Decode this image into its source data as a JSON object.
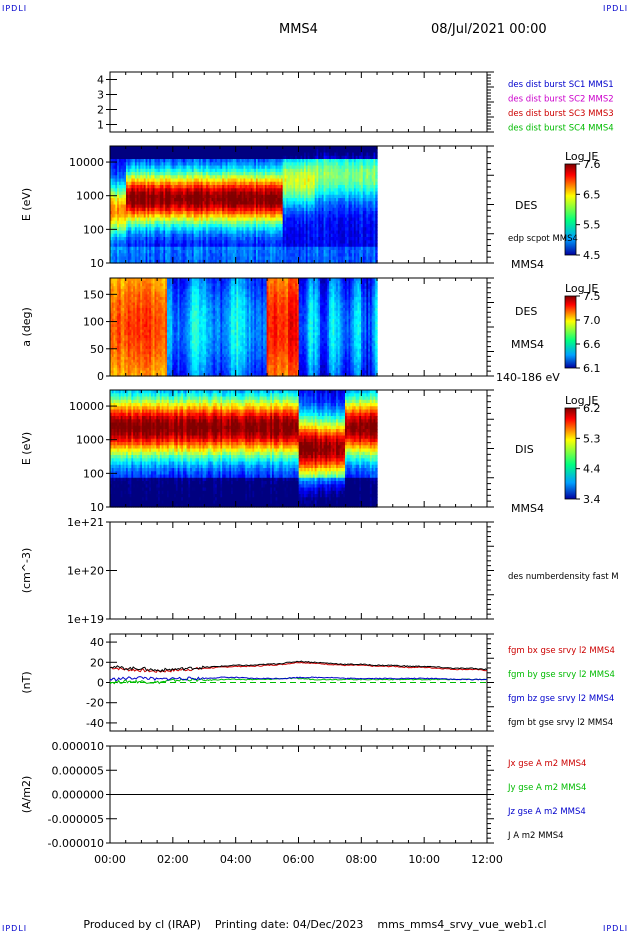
{
  "header": {
    "mission": "MMS4",
    "date": "08/Jul/2021 00:00"
  },
  "corners": {
    "tl": "IPDLI",
    "tr": "IPDLI",
    "bl": "IPDLI",
    "br": "IPDLI"
  },
  "footer": {
    "produced": "Produced by cl (IRAP)",
    "printing": "Printing date: 04/Dec/2023",
    "file": "mms_mms4_srvy_vue_web1.cl"
  },
  "colors": {
    "mms1": "#0000cc",
    "mms2": "#cc00cc",
    "mms3": "#cc0000",
    "mms4": "#00bb00",
    "black": "#000000"
  },
  "chart_data": [
    {
      "type": "line",
      "panel": "spacecraft",
      "ylim": [
        0.5,
        4.5
      ],
      "yticks": [
        "1",
        "2",
        "3",
        "4"
      ],
      "legend": [
        {
          "label": "des dist burst SC1 MMS1",
          "color": "#0000cc"
        },
        {
          "label": "des dist burst SC2 MMS2",
          "color": "#cc00cc"
        },
        {
          "label": "des dist burst SC3 MMS3",
          "color": "#cc0000"
        },
        {
          "label": "des dist burst SC4 MMS4",
          "color": "#00bb00"
        }
      ]
    },
    {
      "type": "heatmap",
      "panel": "des-energy",
      "ylabel": "E (eV)",
      "yscale": "log",
      "ylim": [
        10,
        30000
      ],
      "yticks": [
        "10",
        "100",
        "1000",
        "10000"
      ],
      "data_end_hour": 8.5,
      "colorbar": {
        "title": "Log JE",
        "ticks": [
          "7.6",
          "6.5",
          "5.5",
          "4.5"
        ]
      },
      "right_labels": [
        "DES",
        "edp scpot MMS4",
        "MMS4"
      ]
    },
    {
      "type": "heatmap",
      "panel": "des-pitch",
      "ylabel": "a (deg)",
      "ylim": [
        0,
        180
      ],
      "yticks": [
        "0",
        "50",
        "100",
        "150"
      ],
      "data_end_hour": 8.5,
      "colorbar": {
        "title": "Log JE",
        "ticks": [
          "7.5",
          "7.0",
          "6.6",
          "6.1"
        ]
      },
      "right_labels": [
        "DES",
        "MMS4",
        "140-186 eV"
      ]
    },
    {
      "type": "heatmap",
      "panel": "dis-energy",
      "ylabel": "E (eV)",
      "yscale": "log",
      "ylim": [
        10,
        30000
      ],
      "yticks": [
        "10",
        "100",
        "1000",
        "10000"
      ],
      "data_end_hour": 8.5,
      "colorbar": {
        "title": "Log JE",
        "ticks": [
          "6.2",
          "5.3",
          "4.4",
          "3.4"
        ]
      },
      "right_labels": [
        "DIS",
        "MMS4"
      ]
    },
    {
      "type": "line",
      "panel": "density",
      "ylabel": "(cm^-3)",
      "yscale": "log",
      "yticks": [
        "1e+19",
        "1e+20",
        "1e+21"
      ],
      "legend": [
        {
          "label": "des numberdensity fast M",
          "color": "#000000"
        }
      ]
    },
    {
      "type": "line",
      "panel": "magnetic-field",
      "ylabel": "(nT)",
      "ylim": [
        -48,
        48
      ],
      "yticks": [
        "-40",
        "-20",
        "0",
        "20",
        "40"
      ],
      "x": [
        0,
        0.5,
        1,
        1.5,
        2,
        2.5,
        3,
        3.5,
        4,
        4.5,
        5,
        5.5,
        6,
        6.5,
        7,
        7.5,
        8,
        8.5,
        9,
        9.5,
        10,
        10.5,
        11,
        11.5,
        12
      ],
      "series": [
        {
          "name": "fgm bx gse srvy l2 MMS4",
          "color": "#cc0000",
          "values": [
            15,
            13,
            12,
            11,
            12,
            13,
            14,
            15,
            16,
            16,
            17,
            18,
            20,
            19,
            18,
            17,
            17,
            16,
            16,
            15,
            15,
            14,
            13,
            13,
            12
          ]
        },
        {
          "name": "fgm by gse srvy l2 MMS4",
          "color": "#00bb00",
          "values": [
            0,
            1,
            1,
            0,
            2,
            3,
            2,
            3,
            3,
            3,
            3,
            4,
            4,
            3,
            3,
            3,
            3,
            3,
            3,
            3,
            3,
            3,
            3,
            3,
            3
          ]
        },
        {
          "name": "fgm bz gse srvy l2 MMS4",
          "color": "#0000cc",
          "values": [
            3,
            4,
            5,
            3,
            4,
            4,
            4,
            5,
            5,
            4,
            4,
            4,
            5,
            5,
            5,
            4,
            4,
            4,
            4,
            4,
            4,
            4,
            3,
            3,
            3
          ]
        },
        {
          "name": "fgm bt gse srvy l2 MMS4",
          "color": "#000000",
          "values": [
            16,
            14,
            14,
            12,
            13,
            14,
            15,
            16,
            17,
            17,
            18,
            19,
            21,
            20,
            19,
            18,
            18,
            17,
            17,
            16,
            16,
            15,
            14,
            14,
            13
          ]
        }
      ]
    },
    {
      "type": "line",
      "panel": "current-density",
      "ylabel": "(A/m2)",
      "ylim": [
        -1e-05,
        1e-05
      ],
      "yticks": [
        "-0.000010",
        "-0.000005",
        "0.000000",
        "0.000005",
        "0.000010"
      ],
      "x": [
        0,
        12
      ],
      "series": [
        {
          "name": "Jx gse A m2 MMS4",
          "color": "#cc0000",
          "values": [
            0,
            0
          ]
        },
        {
          "name": "Jy gse A m2 MMS4",
          "color": "#00bb00",
          "values": [
            0,
            0
          ]
        },
        {
          "name": "Jz gse A m2 MMS4",
          "color": "#0000cc",
          "values": [
            0,
            0
          ]
        },
        {
          "name": "J A m2 MMS4",
          "color": "#000000",
          "values": [
            0,
            0
          ]
        }
      ]
    }
  ],
  "xaxis": {
    "ticks": [
      "00:00",
      "02:00",
      "04:00",
      "06:00",
      "08:00",
      "10:00",
      "12:00"
    ]
  }
}
